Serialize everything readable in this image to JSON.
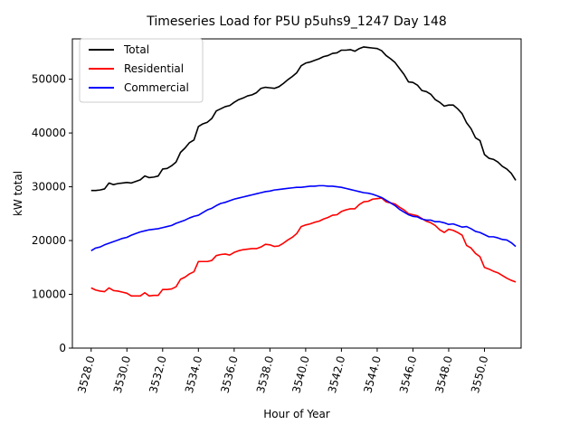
{
  "chart_data": {
    "type": "line",
    "title": "Timeseries Load for P5U p5uhs9_1247  Day 148",
    "xlabel": "Hour of Year",
    "ylabel": "kW total",
    "xlim": [
      3526.95,
      3552.05
    ],
    "ylim": [
      0,
      57500
    ],
    "xticks": [
      3528,
      3530,
      3532,
      3534,
      3536,
      3538,
      3540,
      3542,
      3544,
      3546,
      3548,
      3550
    ],
    "xtick_labels": [
      "3528.0",
      "3530.0",
      "3532.0",
      "3534.0",
      "3536.0",
      "3538.0",
      "3540.0",
      "3542.0",
      "3544.0",
      "3546.0",
      "3548.0",
      "3550.0"
    ],
    "yticks": [
      0,
      10000,
      20000,
      30000,
      40000,
      50000
    ],
    "ytick_labels": [
      "0",
      "10000",
      "20000",
      "30000",
      "40000",
      "50000"
    ],
    "legend_position": "top-left",
    "x": [
      3528.0,
      3528.25,
      3528.5,
      3528.75,
      3529.0,
      3529.25,
      3529.5,
      3529.75,
      3530.0,
      3530.25,
      3530.5,
      3530.75,
      3531.0,
      3531.25,
      3531.5,
      3531.75,
      3532.0,
      3532.25,
      3532.5,
      3532.75,
      3533.0,
      3533.25,
      3533.5,
      3533.75,
      3534.0,
      3534.25,
      3534.5,
      3534.75,
      3535.0,
      3535.25,
      3535.5,
      3535.75,
      3536.0,
      3536.25,
      3536.5,
      3536.75,
      3537.0,
      3537.25,
      3537.5,
      3537.75,
      3538.0,
      3538.25,
      3538.5,
      3538.75,
      3539.0,
      3539.25,
      3539.5,
      3539.75,
      3540.0,
      3540.25,
      3540.5,
      3540.75,
      3541.0,
      3541.25,
      3541.5,
      3541.75,
      3542.0,
      3542.25,
      3542.5,
      3542.75,
      3543.0,
      3543.25,
      3543.5,
      3543.75,
      3544.0,
      3544.25,
      3544.5,
      3544.75,
      3545.0,
      3545.25,
      3545.5,
      3545.75,
      3546.0,
      3546.25,
      3546.5,
      3546.75,
      3547.0,
      3547.25,
      3547.5,
      3547.75,
      3548.0,
      3548.25,
      3548.5,
      3548.75,
      3549.0,
      3549.25,
      3549.5,
      3549.75,
      3550.0,
      3550.25,
      3550.5,
      3550.75,
      3551.0,
      3551.25,
      3551.5,
      3551.75
    ],
    "series": [
      {
        "name": "Total",
        "color": "#000000",
        "values": [
          29300,
          29300,
          29400,
          29600,
          30700,
          30400,
          30600,
          30700,
          30800,
          30700,
          31000,
          31300,
          32000,
          31700,
          31800,
          32000,
          33300,
          33400,
          33900,
          34600,
          36400,
          37200,
          38200,
          38700,
          41200,
          41700,
          42000,
          42700,
          44100,
          44500,
          44900,
          45100,
          45700,
          46200,
          46500,
          46900,
          47100,
          47500,
          48300,
          48500,
          48400,
          48300,
          48600,
          49200,
          49900,
          50500,
          51200,
          52500,
          53000,
          53200,
          53500,
          53800,
          54200,
          54400,
          54800,
          54900,
          55400,
          55400,
          55500,
          55200,
          55700,
          56000,
          55900,
          55800,
          55700,
          55300,
          54400,
          53800,
          53100,
          52000,
          50900,
          49500,
          49400,
          48900,
          47900,
          47700,
          47200,
          46200,
          45700,
          45000,
          45200,
          45200,
          44500,
          43600,
          41900,
          40800,
          39100,
          38600,
          36000,
          35300,
          35100,
          34600,
          33800,
          33300,
          32500,
          31200
        ]
      },
      {
        "name": "Residential",
        "color": "#ff0000",
        "values": [
          11200,
          10800,
          10600,
          10500,
          11200,
          10700,
          10600,
          10400,
          10200,
          9700,
          9700,
          9700,
          10300,
          9700,
          9800,
          9800,
          10900,
          10900,
          11000,
          11400,
          12800,
          13200,
          13800,
          14200,
          16100,
          16100,
          16100,
          16300,
          17200,
          17400,
          17500,
          17300,
          17800,
          18100,
          18300,
          18400,
          18500,
          18500,
          18800,
          19300,
          19200,
          18900,
          19000,
          19500,
          20100,
          20600,
          21300,
          22600,
          22900,
          23100,
          23400,
          23600,
          24000,
          24300,
          24700,
          24800,
          25400,
          25700,
          25900,
          25900,
          26700,
          27200,
          27300,
          27700,
          27800,
          27900,
          27200,
          27000,
          26800,
          26200,
          25700,
          25000,
          24800,
          24600,
          24100,
          23600,
          23300,
          22800,
          22000,
          21500,
          22100,
          21900,
          21500,
          21000,
          19100,
          18600,
          17600,
          17000,
          15000,
          14700,
          14300,
          14000,
          13500,
          13000,
          12600,
          12300
        ]
      },
      {
        "name": "Commercial",
        "color": "#0000ff",
        "values": [
          18100,
          18600,
          18800,
          19200,
          19500,
          19800,
          20100,
          20400,
          20600,
          21000,
          21300,
          21600,
          21800,
          22000,
          22100,
          22200,
          22400,
          22600,
          22800,
          23200,
          23500,
          23800,
          24200,
          24500,
          24700,
          25200,
          25700,
          26000,
          26500,
          26900,
          27100,
          27400,
          27700,
          27900,
          28100,
          28300,
          28500,
          28700,
          28900,
          29100,
          29200,
          29400,
          29500,
          29600,
          29700,
          29800,
          29900,
          29900,
          30000,
          30100,
          30100,
          30200,
          30200,
          30100,
          30100,
          30000,
          29900,
          29700,
          29500,
          29300,
          29100,
          28900,
          28800,
          28600,
          28300,
          28000,
          27500,
          27000,
          26500,
          25800,
          25300,
          24800,
          24500,
          24400,
          24000,
          23800,
          23800,
          23500,
          23500,
          23300,
          23000,
          23100,
          22800,
          22500,
          22600,
          22200,
          21700,
          21500,
          21100,
          20700,
          20700,
          20500,
          20200,
          20100,
          19600,
          18900
        ]
      }
    ]
  }
}
